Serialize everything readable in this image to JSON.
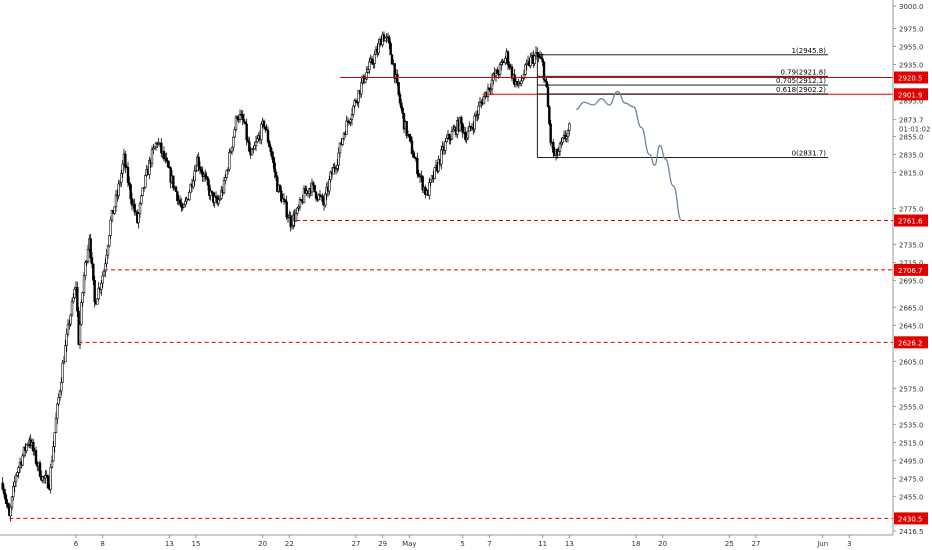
{
  "chart_data": {
    "type": "candlestick",
    "title": "",
    "xlabel": "",
    "ylabel": "",
    "ylim": [
      2416.5,
      3000.0
    ],
    "colors": {
      "candle": "#000000",
      "fib_line": "#000000",
      "red_level": "#e00000",
      "projection": "#6e86a6",
      "axis_text": "#333333",
      "label_bg": "#e00000",
      "label_text": "#ffffff"
    },
    "y_ticks": [
      "3000.0",
      "2975.0",
      "2955.0",
      "2935.0",
      "2915.0",
      "2895.0",
      "2873.7",
      "2855.0",
      "2835.0",
      "2815.0",
      "2775.0",
      "2755.0",
      "2735.0",
      "2715.0",
      "2695.0",
      "2665.0",
      "2645.0",
      "2625.0",
      "2605.0",
      "2575.0",
      "2555.0",
      "2535.0",
      "2515.0",
      "2495.0",
      "2475.0",
      "2455.0",
      "2416.5"
    ],
    "y_tick_values": [
      3000.0,
      2975.0,
      2955.0,
      2935.0,
      2915.0,
      2895.0,
      2873.7,
      2855.0,
      2835.0,
      2815.0,
      2775.0,
      2755.0,
      2735.0,
      2715.0,
      2695.0,
      2665.0,
      2645.0,
      2625.0,
      2605.0,
      2575.0,
      2555.0,
      2535.0,
      2515.0,
      2495.0,
      2475.0,
      2455.0,
      2416.5
    ],
    "countdown": "01:01:02",
    "x_ticks": [
      "6",
      "8",
      "13",
      "15",
      "20",
      "22",
      "27",
      "29",
      "May",
      "5",
      "7",
      "11",
      "13",
      "18",
      "20",
      "25",
      "27",
      "Jun",
      "3"
    ],
    "x_tick_days": [
      6,
      8,
      13,
      15,
      20,
      22,
      27,
      29,
      31,
      35,
      37,
      41,
      43,
      48,
      50,
      55,
      57,
      62,
      64
    ],
    "x_range": [
      0.3,
      66.3
    ],
    "fib_levels": [
      {
        "label": "1(2945.8)",
        "value": 2945.8
      },
      {
        "label": "0.79(2921.8)",
        "value": 2921.8
      },
      {
        "label": "0.705(2912.1)",
        "value": 2912.1
      },
      {
        "label": "0.618(2902.2)",
        "value": 2902.2
      },
      {
        "label": "0(2831.7)",
        "value": 2831.7
      }
    ],
    "fib_x_range": [
      40.6,
      62.4
    ],
    "red_levels": [
      {
        "label": "2920.5",
        "value": 2920.5,
        "style": "solid",
        "x_start": 25.8
      },
      {
        "label": "2901.9",
        "value": 2901.9,
        "style": "solid",
        "x_start": 36.5
      },
      {
        "label": "2761.6",
        "value": 2761.6,
        "style": "dashed",
        "x_start": 22.5
      },
      {
        "label": "2706.7",
        "value": 2706.7,
        "style": "dashed",
        "x_start": 8.1
      },
      {
        "label": "2626.2",
        "value": 2626.2,
        "style": "dashed",
        "x_start": 6.2
      },
      {
        "label": "2430.5",
        "value": 2430.5,
        "style": "dashed",
        "x_start": 1.0
      }
    ],
    "price_path": [
      [
        0.5,
        2470
      ],
      [
        1.0,
        2430.5
      ],
      [
        1.5,
        2480
      ],
      [
        2.0,
        2500
      ],
      [
        2.5,
        2520
      ],
      [
        3.0,
        2495
      ],
      [
        3.5,
        2475
      ],
      [
        4.0,
        2470
      ],
      [
        4.5,
        2540
      ],
      [
        5.0,
        2600
      ],
      [
        5.5,
        2650
      ],
      [
        6.0,
        2690
      ],
      [
        6.2,
        2628
      ],
      [
        6.6,
        2700
      ],
      [
        7.0,
        2745
      ],
      [
        7.4,
        2670
      ],
      [
        7.8,
        2690
      ],
      [
        8.1,
        2706.7
      ],
      [
        8.6,
        2760
      ],
      [
        9.1,
        2790
      ],
      [
        9.6,
        2830
      ],
      [
        10.1,
        2790
      ],
      [
        10.6,
        2760
      ],
      [
        11.1,
        2800
      ],
      [
        11.6,
        2830
      ],
      [
        12.1,
        2850
      ],
      [
        12.6,
        2830
      ],
      [
        13.1,
        2810
      ],
      [
        13.6,
        2790
      ],
      [
        14.0,
        2770
      ],
      [
        14.6,
        2800
      ],
      [
        15.1,
        2830
      ],
      [
        15.6,
        2810
      ],
      [
        16.1,
        2790
      ],
      [
        16.6,
        2780
      ],
      [
        17.1,
        2800
      ],
      [
        17.6,
        2840
      ],
      [
        18.1,
        2880
      ],
      [
        18.6,
        2870
      ],
      [
        19.1,
        2830
      ],
      [
        19.6,
        2850
      ],
      [
        20.1,
        2870
      ],
      [
        20.6,
        2840
      ],
      [
        21.1,
        2800
      ],
      [
        21.6,
        2780
      ],
      [
        22.1,
        2760
      ],
      [
        22.6,
        2770
      ],
      [
        23.1,
        2790
      ],
      [
        23.6,
        2800
      ],
      [
        24.1,
        2790
      ],
      [
        24.6,
        2780
      ],
      [
        25.1,
        2810
      ],
      [
        25.6,
        2830
      ],
      [
        26.1,
        2860
      ],
      [
        26.6,
        2880
      ],
      [
        27.1,
        2900
      ],
      [
        27.6,
        2920
      ],
      [
        28.1,
        2935
      ],
      [
        28.6,
        2950
      ],
      [
        29.0,
        2968
      ],
      [
        29.4,
        2960
      ],
      [
        29.8,
        2935
      ],
      [
        30.2,
        2900
      ],
      [
        30.6,
        2870
      ],
      [
        31.0,
        2850
      ],
      [
        31.4,
        2830
      ],
      [
        31.8,
        2810
      ],
      [
        32.3,
        2790
      ],
      [
        32.8,
        2810
      ],
      [
        33.3,
        2830
      ],
      [
        33.8,
        2850
      ],
      [
        34.3,
        2860
      ],
      [
        34.8,
        2870
      ],
      [
        35.3,
        2855
      ],
      [
        35.8,
        2870
      ],
      [
        36.3,
        2890
      ],
      [
        36.8,
        2905
      ],
      [
        37.3,
        2920
      ],
      [
        37.8,
        2930
      ],
      [
        38.3,
        2945
      ],
      [
        38.8,
        2920
      ],
      [
        39.2,
        2910
      ],
      [
        39.6,
        2925
      ],
      [
        40.1,
        2940
      ],
      [
        40.6,
        2945
      ],
      [
        41.0,
        2935
      ],
      [
        41.3,
        2905
      ],
      [
        41.6,
        2850
      ],
      [
        41.9,
        2832
      ],
      [
        42.2,
        2838
      ],
      [
        42.5,
        2848
      ],
      [
        42.8,
        2858
      ],
      [
        43.1,
        2865
      ]
    ],
    "projection_path": [
      [
        43.5,
        2885
      ],
      [
        44.1,
        2893
      ],
      [
        44.8,
        2890
      ],
      [
        45.4,
        2897
      ],
      [
        46.0,
        2890
      ],
      [
        46.6,
        2905
      ],
      [
        47.2,
        2892
      ],
      [
        47.8,
        2888
      ],
      [
        48.4,
        2865
      ],
      [
        49.0,
        2835
      ],
      [
        49.4,
        2823
      ],
      [
        49.8,
        2845
      ],
      [
        50.2,
        2830
      ],
      [
        50.8,
        2800
      ],
      [
        51.4,
        2762
      ]
    ]
  }
}
